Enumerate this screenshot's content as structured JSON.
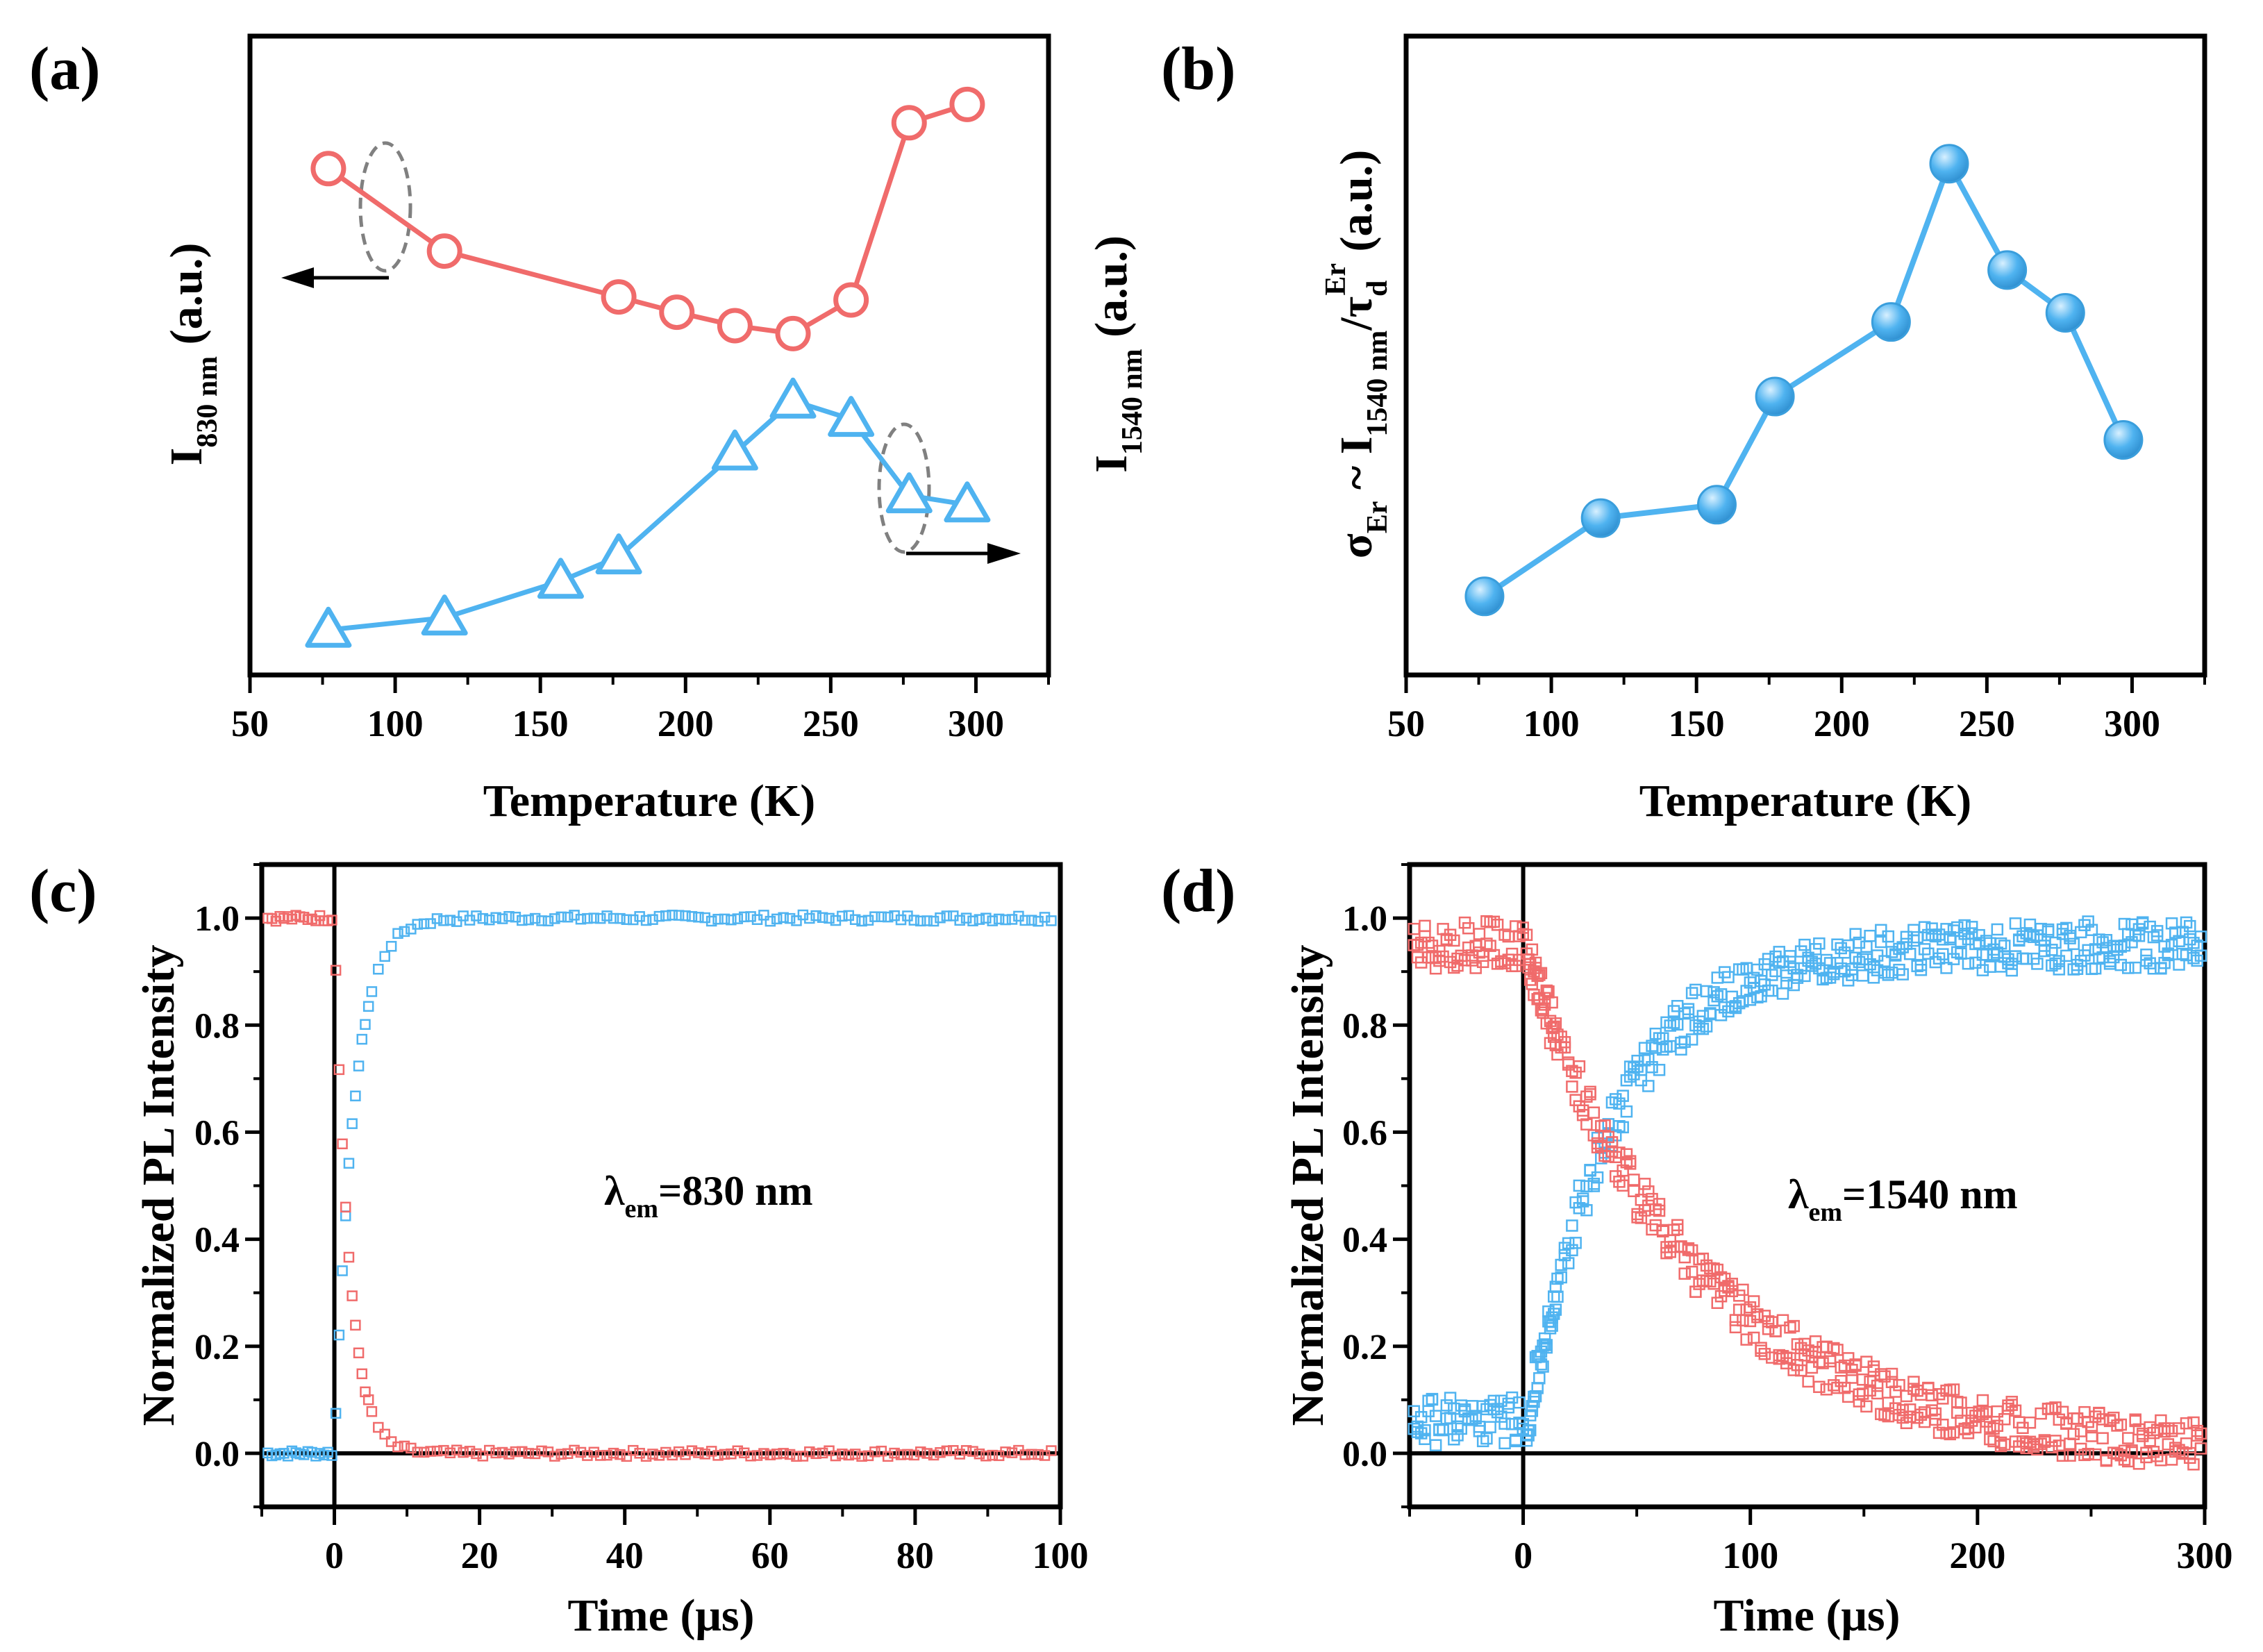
{
  "colors": {
    "red": "#F06B6B",
    "blue": "#4FB3F0",
    "axis": "#000000",
    "guide": "#808080"
  },
  "chart_data": [
    {
      "panel": "a",
      "type": "line",
      "label": "(a)",
      "xlabel": "Temperature (K)",
      "ylabel_left": {
        "base": "I",
        "sub": "830 nm",
        "suffix": " (a.u.)"
      },
      "ylabel_right": {
        "base": "I",
        "sub": "1540 nm",
        "suffix": " (a.u.)"
      },
      "xlim": [
        50,
        325
      ],
      "ylim": [
        0,
        1
      ],
      "xticks": [
        50,
        100,
        150,
        200,
        250,
        300
      ],
      "series": [
        {
          "name": "I_830nm",
          "axis": "left",
          "marker": "open-circle",
          "x": [
            77,
            117,
            177,
            197,
            217,
            237,
            257,
            277,
            297
          ],
          "y": [
            0.815,
            0.68,
            0.605,
            0.58,
            0.558,
            0.545,
            0.6,
            0.89,
            0.92
          ]
        },
        {
          "name": "I_1540nm",
          "axis": "right",
          "marker": "open-triangle",
          "x": [
            77,
            117,
            157,
            177,
            217,
            237,
            257,
            277,
            297
          ],
          "y": [
            0.06,
            0.08,
            0.14,
            0.18,
            0.35,
            0.435,
            0.405,
            0.28,
            0.265
          ]
        }
      ]
    },
    {
      "panel": "b",
      "type": "line",
      "label": "(b)",
      "xlabel": "Temperature (K)",
      "ylabel": {
        "sigma": "σ",
        "sigma_sub": "Er",
        "tilde": " ~ I",
        "i_sub": "1540 nm",
        "slash": "/τ",
        "tau_sub": "d",
        "tau_sup": "Er",
        "suffix": " (a.u.)"
      },
      "xlim": [
        50,
        325
      ],
      "ylim": [
        0,
        1
      ],
      "xticks": [
        50,
        100,
        150,
        200,
        250,
        300
      ],
      "series": [
        {
          "name": "sigma_Er",
          "marker": "filled-sphere",
          "x": [
            77,
            117,
            157,
            177,
            217,
            237,
            257,
            277,
            297
          ],
          "y": [
            0.115,
            0.243,
            0.265,
            0.442,
            0.564,
            0.823,
            0.649,
            0.579,
            0.371
          ]
        }
      ]
    },
    {
      "panel": "c",
      "type": "scatter",
      "label": "(c)",
      "annotation": {
        "lambda": "λ",
        "sub": "em",
        "text": "=830 nm"
      },
      "xlabel": "Time (μs)",
      "ylabel": "Normalized PL Intensity",
      "xlim": [
        -10,
        100
      ],
      "ylim": [
        -0.1,
        1.1
      ],
      "xticks": [
        0,
        20,
        40,
        60,
        80,
        100
      ],
      "yticks": [
        0.0,
        0.2,
        0.4,
        0.6,
        0.8,
        1.0
      ],
      "series": [
        {
          "name": "rise",
          "marker": "open-square",
          "model": "rise",
          "tau": 2.6,
          "pre": 0.0
        },
        {
          "name": "decay",
          "marker": "open-square",
          "model": "decay",
          "tau": 2.0,
          "pre": 1.0
        }
      ]
    },
    {
      "panel": "d",
      "type": "scatter",
      "label": "(d)",
      "annotation": {
        "lambda": "λ",
        "sub": "em",
        "text": "=1540 nm"
      },
      "xlabel": "Time (μs)",
      "ylabel": "Normalized PL Intensity",
      "xlim": [
        -50,
        300
      ],
      "ylim": [
        -0.1,
        1.1
      ],
      "xticks": [
        0,
        100,
        200,
        300
      ],
      "yticks": [
        0.0,
        0.2,
        0.4,
        0.6,
        0.8,
        1.0
      ],
      "series": [
        {
          "name": "rise",
          "marker": "open-square",
          "model": "rise",
          "tau": 38,
          "pre": 0.06
        },
        {
          "name": "decay",
          "marker": "open-square",
          "model": "decay",
          "tau": 75,
          "pre": 0.95
        }
      ]
    }
  ]
}
